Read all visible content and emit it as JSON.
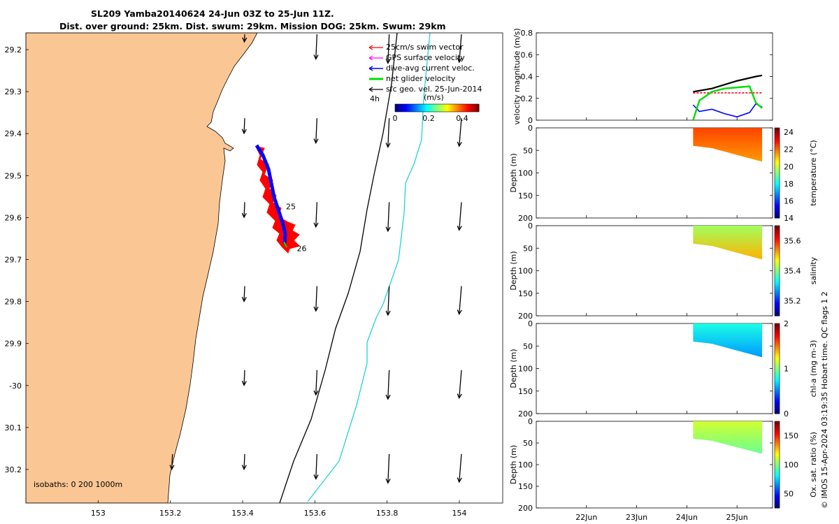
{
  "title": {
    "line1": "SL209 Yamba20140624 24-Jun 03Z to 25-Jun 11Z.",
    "line2": "Dist. over ground: 25km. Dist. swum: 29km. Mission DOG: 25km. Swum: 29km"
  },
  "map": {
    "lon_ticks": [
      "153",
      "153.2",
      "153.4",
      "153.6",
      "153.8",
      "154"
    ],
    "lat_ticks": [
      "29.2",
      "29.3",
      "29.4",
      "29.5",
      "29.6",
      "29.7",
      "29.8",
      "29.9",
      "-30",
      "30.1",
      "30.2"
    ],
    "xlim": [
      152.8,
      154.12
    ],
    "ylim": [
      -30.28,
      -29.16
    ],
    "legend": [
      {
        "label": "25cm/s swim vector",
        "color": "#ff0000"
      },
      {
        "label": "GPS surface velocity",
        "color": "#ff00ff"
      },
      {
        "label": "dive-avg current veloc.",
        "color": "#0000ff"
      },
      {
        "label": "net glider velocity",
        "color": "#00dd00"
      },
      {
        "label": "sfc geo. vel. 25-Jun-2014",
        "color": "#000000"
      }
    ],
    "scale_label": "4h",
    "colorbar": {
      "label": "(m/s)",
      "ticks": [
        "0",
        "0.2",
        "0.4"
      ],
      "range": [
        0,
        0.5
      ]
    },
    "day_labels": [
      {
        "text": "25",
        "lon": 153.52,
        "lat": -29.58
      },
      {
        "text": "26",
        "lon": 153.55,
        "lat": -29.68
      }
    ],
    "isobath_label": "isobaths: 0   200  1000m"
  },
  "chart_data": [
    {
      "type": "line",
      "title": "",
      "ylabel": "velocity magnitude (m/s)",
      "ylim": [
        0,
        0.8
      ],
      "yticks": [
        "0",
        "0.2",
        "0.4",
        "0.6",
        "0.8"
      ],
      "xlim": [
        "21-Jun 00:00",
        "25-Jun 17:00"
      ],
      "series": [
        {
          "color": "#000000",
          "x": [
            "24-Jun 03:00",
            "24-Jun 12:00",
            "25-Jun 00:00",
            "25-Jun 09:00",
            "25-Jun 12:00"
          ],
          "values": [
            0.26,
            0.29,
            0.36,
            0.4,
            0.41
          ]
        },
        {
          "color": "#ff0000",
          "x": [
            "24-Jun 03:00",
            "24-Jun 12:00",
            "25-Jun 00:00",
            "25-Jun 09:00",
            "25-Jun 12:00"
          ],
          "values": [
            0.25,
            0.25,
            0.25,
            0.25,
            0.25
          ]
        },
        {
          "color": "#0000ff",
          "x": [
            "24-Jun 03:00",
            "24-Jun 06:00",
            "24-Jun 12:00",
            "24-Jun 18:00",
            "25-Jun 00:00",
            "25-Jun 06:00",
            "25-Jun 09:00",
            "25-Jun 12:00"
          ],
          "values": [
            0.14,
            0.08,
            0.1,
            0.06,
            0.03,
            0.07,
            0.15,
            0.12
          ]
        },
        {
          "color": "#00dd00",
          "x": [
            "24-Jun 03:00",
            "24-Jun 06:00",
            "24-Jun 12:00",
            "24-Jun 18:00",
            "25-Jun 00:00",
            "25-Jun 06:00",
            "25-Jun 09:00",
            "25-Jun 12:00"
          ],
          "values": [
            0.0,
            0.18,
            0.26,
            0.29,
            0.3,
            0.31,
            0.16,
            0.11
          ]
        }
      ]
    },
    {
      "type": "heatmap",
      "ylabel": "Depth (m)",
      "ylim": [
        0,
        200
      ],
      "yticks": [
        "0",
        "50",
        "100",
        "150",
        "200"
      ],
      "colorbar": {
        "label": "temperature (°C)",
        "ticks": [
          "14",
          "16",
          "18",
          "20",
          "22",
          "24"
        ],
        "range": [
          14,
          24.5
        ]
      },
      "x": [
        "24-Jun 03:00",
        "24-Jun 12:00",
        "25-Jun 00:00",
        "25-Jun 12:00"
      ],
      "max_depth": [
        40,
        45,
        60,
        75
      ],
      "surface_value": 22.5,
      "deep_value": 21.6
    },
    {
      "type": "heatmap",
      "ylabel": "Depth (m)",
      "ylim": [
        0,
        200
      ],
      "yticks": [
        "0",
        "50",
        "100",
        "150",
        "200"
      ],
      "colorbar": {
        "label": "salinity",
        "ticks": [
          "35.2",
          "35.4",
          "35.6"
        ],
        "range": [
          35.1,
          35.7
        ]
      },
      "x": [
        "24-Jun 03:00",
        "24-Jun 12:00",
        "25-Jun 00:00",
        "25-Jun 12:00"
      ],
      "max_depth": [
        40,
        45,
        60,
        75
      ],
      "surface_value": 35.42,
      "deep_value": 35.52
    },
    {
      "type": "heatmap",
      "ylabel": "Depth (m)",
      "ylim": [
        0,
        200
      ],
      "yticks": [
        "0",
        "50",
        "100",
        "150",
        "200"
      ],
      "colorbar": {
        "label": "chl-a (mg m-3)",
        "ticks": [
          "0",
          "1",
          "2"
        ],
        "range": [
          0,
          2
        ]
      },
      "x": [
        "24-Jun 03:00",
        "24-Jun 12:00",
        "25-Jun 00:00",
        "25-Jun 12:00"
      ],
      "max_depth": [
        40,
        45,
        60,
        75
      ],
      "surface_value": 0.8,
      "deep_value": 0.55
    },
    {
      "type": "heatmap",
      "ylabel": "Depth (m)",
      "ylim": [
        0,
        200
      ],
      "yticks": [
        "0",
        "50",
        "100",
        "150",
        "200"
      ],
      "colorbar": {
        "label": "Ox. sat. ratio (%)",
        "ticks": [
          "50",
          "100",
          "150"
        ],
        "range": [
          25,
          175
        ]
      },
      "x": [
        "24-Jun 03:00",
        "24-Jun 12:00",
        "25-Jun 00:00",
        "25-Jun 12:00"
      ],
      "max_depth": [
        40,
        45,
        60,
        75
      ],
      "surface_value": 112,
      "deep_value": 97
    }
  ],
  "time_ticks": [
    "22Jun",
    "23Jun",
    "24Jun",
    "25Jun"
  ],
  "footer": "© IMOS 15-Apr-2024 03:19:35 Hobart time. QC flags 1  2"
}
